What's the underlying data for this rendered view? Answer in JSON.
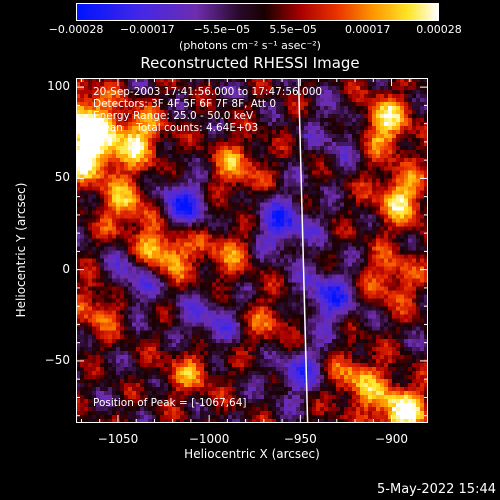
{
  "chart_data": {
    "type": "heatmap",
    "title": "Reconstructed RHESSI Image",
    "xlabel": "Heliocentric X (arcsec)",
    "ylabel": "Heliocentric Y (arcsec)",
    "xlim": [
      -1073,
      -880
    ],
    "ylim": [
      -84,
      105
    ],
    "xticks": [
      -1050,
      -1000,
      -950,
      -900
    ],
    "xtick_labels": [
      "−1050",
      "−1000",
      "−950",
      "−900"
    ],
    "yticks": [
      100,
      50,
      0,
      -50
    ],
    "ytick_labels": [
      "100",
      "50",
      "0",
      "−50"
    ],
    "colorbar": {
      "range": [
        -0.00028,
        0.00028
      ],
      "ticks": [
        -0.00028,
        -0.00017,
        -5.5e-05,
        5.5e-05,
        0.00017,
        0.00028
      ],
      "tick_labels": [
        "−0.00028",
        "−0.00017",
        "−5.5e−05",
        "5.5e−05",
        "0.00017",
        "0.00028"
      ],
      "units": "(photons cm⁻² s⁻¹ asec⁻²)"
    },
    "annotations": [
      "20-Sep-2003 17:41:56.000 to 17:47:56.000",
      "Detectors: 3F 4F 5F 6F 7F 8F, Att 0",
      "Energy Range: 25.0 - 50.0 keV",
      "Clean    Total counts: 4.64E+03",
      "Position of Peak = [-1067,64]"
    ],
    "peak": [
      -1067,
      64
    ],
    "limb_line": [
      [
        -951,
        105
      ],
      [
        -946,
        -84
      ]
    ],
    "hot_regions": [
      {
        "x": -1067,
        "y": 64,
        "value": 0.00028
      },
      {
        "x": -1070,
        "y": 85,
        "value": 0.00024
      },
      {
        "x": -1040,
        "y": 72,
        "value": 0.00022
      },
      {
        "x": -1025,
        "y": 10,
        "value": 0.00026
      },
      {
        "x": -1045,
        "y": 35,
        "value": 0.00018
      },
      {
        "x": -1060,
        "y": -20,
        "value": 0.00015
      },
      {
        "x": -1010,
        "y": -55,
        "value": 0.00014
      },
      {
        "x": -985,
        "y": 55,
        "value": 0.00016
      },
      {
        "x": -990,
        "y": 10,
        "value": 0.00013
      },
      {
        "x": -965,
        "y": -30,
        "value": 0.00012
      },
      {
        "x": -905,
        "y": 80,
        "value": 0.00025
      },
      {
        "x": -895,
        "y": 40,
        "value": 0.00022
      },
      {
        "x": -900,
        "y": -5,
        "value": 0.00016
      },
      {
        "x": -920,
        "y": -60,
        "value": 0.00018
      },
      {
        "x": -895,
        "y": -78,
        "value": 0.00027
      }
    ],
    "cold_regions": [
      {
        "x": -1015,
        "y": 35,
        "value": -0.00022
      },
      {
        "x": -1040,
        "y": -5,
        "value": -0.00018
      },
      {
        "x": -960,
        "y": 25,
        "value": -0.0002
      },
      {
        "x": -935,
        "y": -15,
        "value": -0.0002
      },
      {
        "x": -950,
        "y": -55,
        "value": -0.00016
      },
      {
        "x": -1000,
        "y": -30,
        "value": -0.00014
      },
      {
        "x": -925,
        "y": 75,
        "value": -0.00012
      }
    ]
  },
  "footer": {
    "timestamp": "5-May-2022 15:44"
  }
}
